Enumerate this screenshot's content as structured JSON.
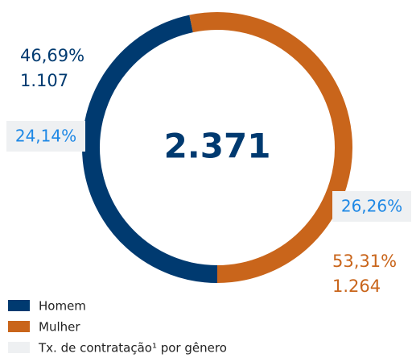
{
  "chart_data": {
    "type": "pie",
    "categories": [
      "Homem",
      "Mulher"
    ],
    "values": [
      46.69,
      53.31
    ],
    "value_labels": [
      "46,69%",
      "53,31%"
    ],
    "count_labels": [
      "1.107",
      "1.264"
    ],
    "rate_labels": [
      "24,14%",
      "26,26%"
    ],
    "colors": [
      "#003a70",
      "#c9651b"
    ],
    "total_label": "2.371",
    "legend_note": "Tx. de contratação¹ por gênero"
  }
}
